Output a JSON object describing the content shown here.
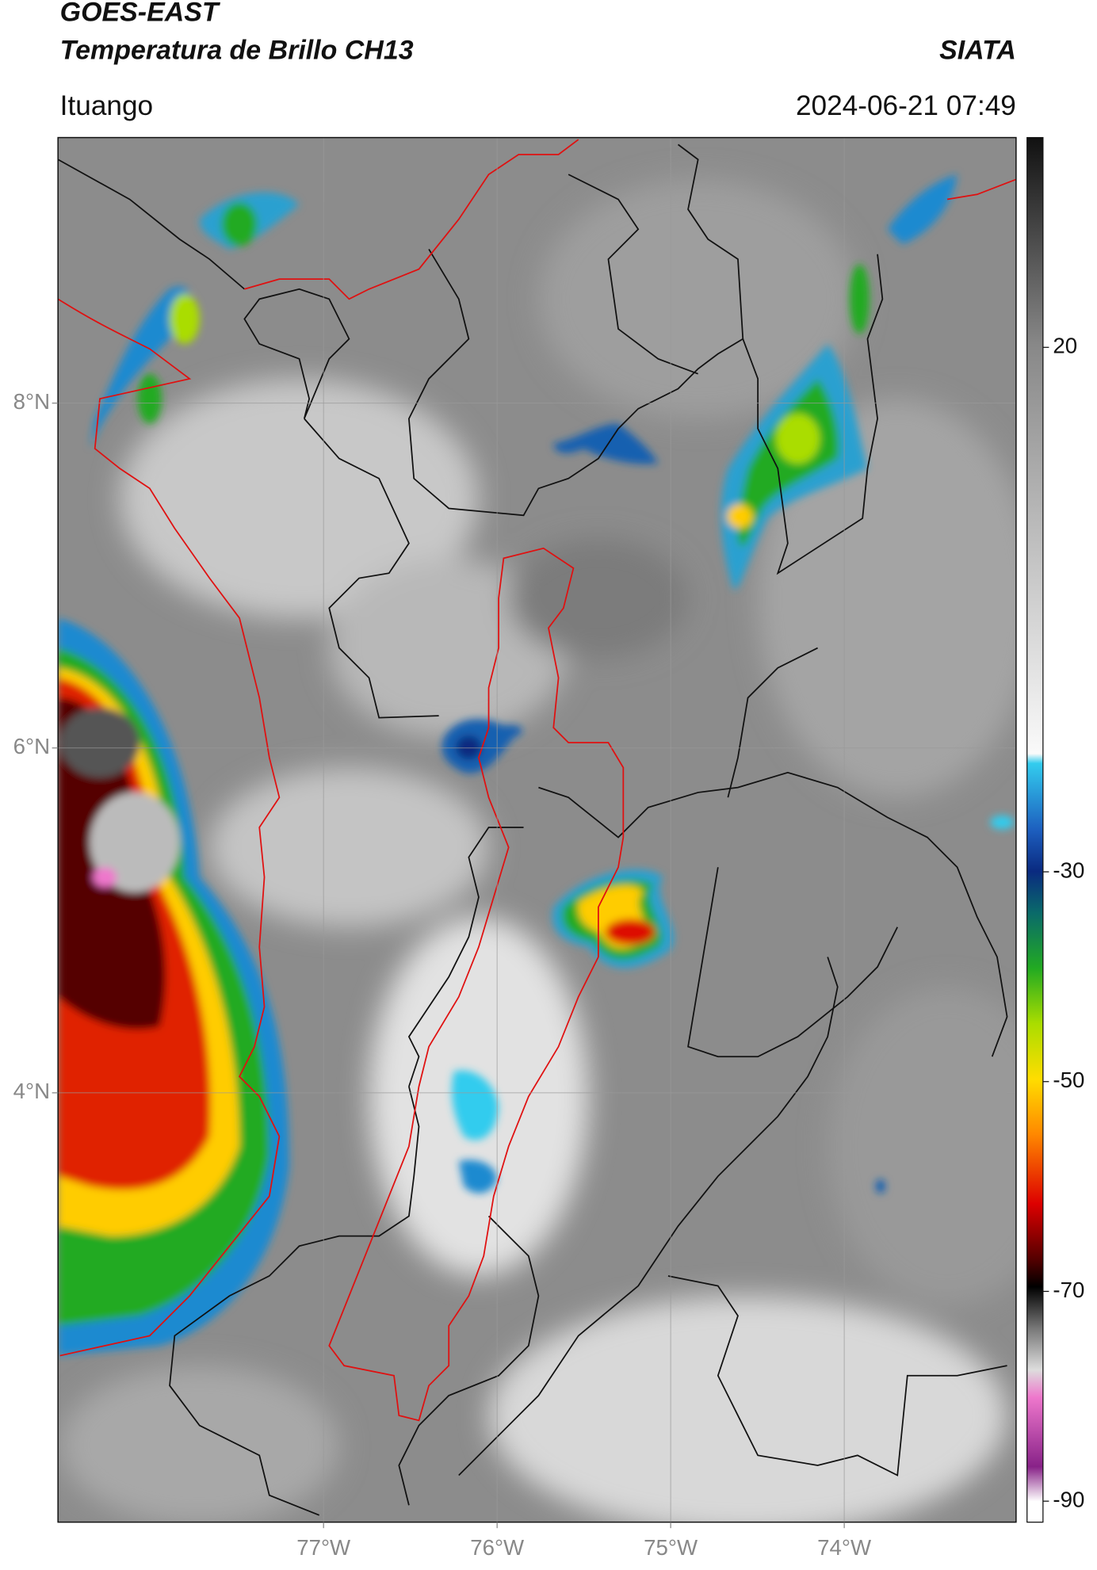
{
  "header": {
    "title": "GOES-EAST",
    "subtitle": "Temperatura de Brillo CH13",
    "brand": "SIATA",
    "location": "Ituango",
    "datetime": "2024-06-21 07:49"
  },
  "map": {
    "lonlim": [
      -78.53,
      -73.01
    ],
    "latlim": [
      1.51,
      9.54
    ],
    "lonticks": [
      {
        "value": -77,
        "label": "77°W"
      },
      {
        "value": -76,
        "label": "76°W"
      },
      {
        "value": -75,
        "label": "75°W"
      },
      {
        "value": -74,
        "label": "74°W"
      }
    ],
    "latticks": [
      {
        "value": 8,
        "label": "8°N"
      },
      {
        "value": 6,
        "label": "6°N"
      },
      {
        "value": 4,
        "label": "4°N"
      }
    ],
    "grid": true
  },
  "colorbar": {
    "lim": [
      -92,
      40
    ],
    "ticks": [
      20,
      -30,
      -50,
      -70,
      -90
    ]
  }
}
